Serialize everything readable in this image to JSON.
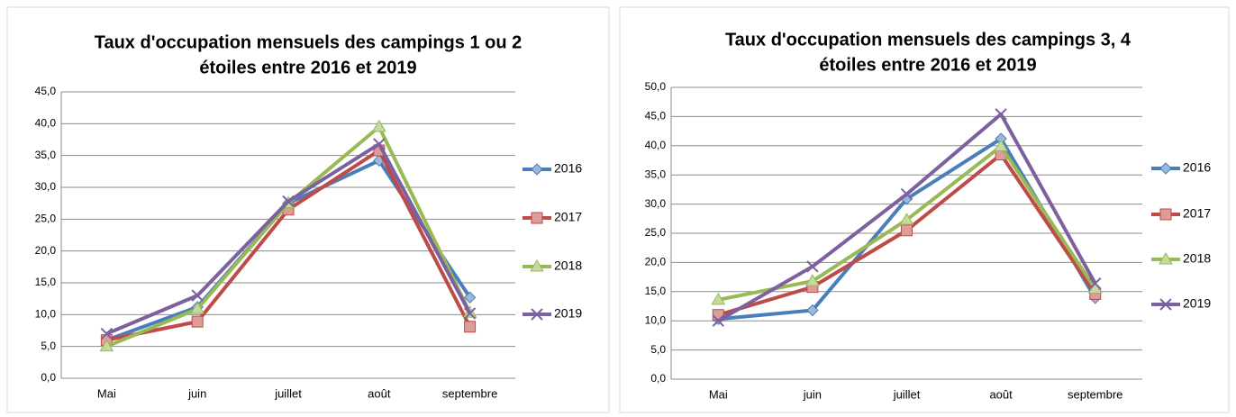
{
  "chart_data": [
    {
      "type": "line",
      "title": [
        "Taux d'occupation mensuels des campings  1 ou 2",
        "étoiles entre 2016 et 2019"
      ],
      "categories": [
        "Mai",
        "juin",
        "juillet",
        "août",
        "septembre"
      ],
      "ylim": [
        0,
        45
      ],
      "yticks": [
        {
          "value": 0,
          "label": "0,0"
        },
        {
          "value": 5,
          "label": "5,0"
        },
        {
          "value": 10,
          "label": "10,0"
        },
        {
          "value": 15,
          "label": "15,0"
        },
        {
          "value": 20,
          "label": "20,0"
        },
        {
          "value": 25,
          "label": "25,0"
        },
        {
          "value": 30,
          "label": "30,0"
        },
        {
          "value": 35,
          "label": "35,0"
        },
        {
          "value": 40,
          "label": "40,0"
        },
        {
          "value": 45,
          "label": "45,0"
        }
      ],
      "grid": true,
      "legend": "right",
      "series": [
        {
          "name": "2016",
          "color": "#4a7ebb",
          "marker": "diamond",
          "values": [
            6.0,
            11.2,
            27.5,
            34.2,
            12.7
          ]
        },
        {
          "name": "2017",
          "color": "#be4b48",
          "marker": "square",
          "values": [
            6.0,
            8.9,
            26.5,
            35.8,
            8.1
          ]
        },
        {
          "name": "2018",
          "color": "#98b954",
          "marker": "triangle",
          "values": [
            5.0,
            10.9,
            27.5,
            39.5,
            10.3
          ]
        },
        {
          "name": "2019",
          "color": "#7d60a0",
          "marker": "x",
          "values": [
            7.0,
            13.0,
            27.8,
            36.8,
            10.2
          ]
        }
      ]
    },
    {
      "type": "line",
      "title": [
        "Taux d'occupation mensuels des campings 3, 4",
        "étoiles entre 2016 et 2019"
      ],
      "categories": [
        "Mai",
        "juin",
        "juillet",
        "août",
        "septembre"
      ],
      "ylim": [
        0,
        50
      ],
      "yticks": [
        {
          "value": 0,
          "label": "0,0"
        },
        {
          "value": 5,
          "label": "5,0"
        },
        {
          "value": 10,
          "label": "10,0"
        },
        {
          "value": 15,
          "label": "15,0"
        },
        {
          "value": 20,
          "label": "20,0"
        },
        {
          "value": 25,
          "label": "25,0"
        },
        {
          "value": 30,
          "label": "30,0"
        },
        {
          "value": 35,
          "label": "35,0"
        },
        {
          "value": 40,
          "label": "40,0"
        },
        {
          "value": 45,
          "label": "45,0"
        },
        {
          "value": 50,
          "label": "50,0"
        }
      ],
      "grid": true,
      "legend": "right",
      "series": [
        {
          "name": "2016",
          "color": "#4a7ebb",
          "marker": "diamond",
          "values": [
            10.3,
            11.8,
            30.9,
            41.2,
            13.9
          ]
        },
        {
          "name": "2017",
          "color": "#be4b48",
          "marker": "square",
          "values": [
            11.0,
            15.8,
            25.5,
            38.5,
            14.6
          ]
        },
        {
          "name": "2018",
          "color": "#98b954",
          "marker": "triangle",
          "values": [
            13.6,
            16.8,
            27.3,
            39.9,
            15.5
          ]
        },
        {
          "name": "2019",
          "color": "#7d60a0",
          "marker": "x",
          "values": [
            10.0,
            19.3,
            31.7,
            45.4,
            16.4
          ]
        }
      ]
    }
  ]
}
